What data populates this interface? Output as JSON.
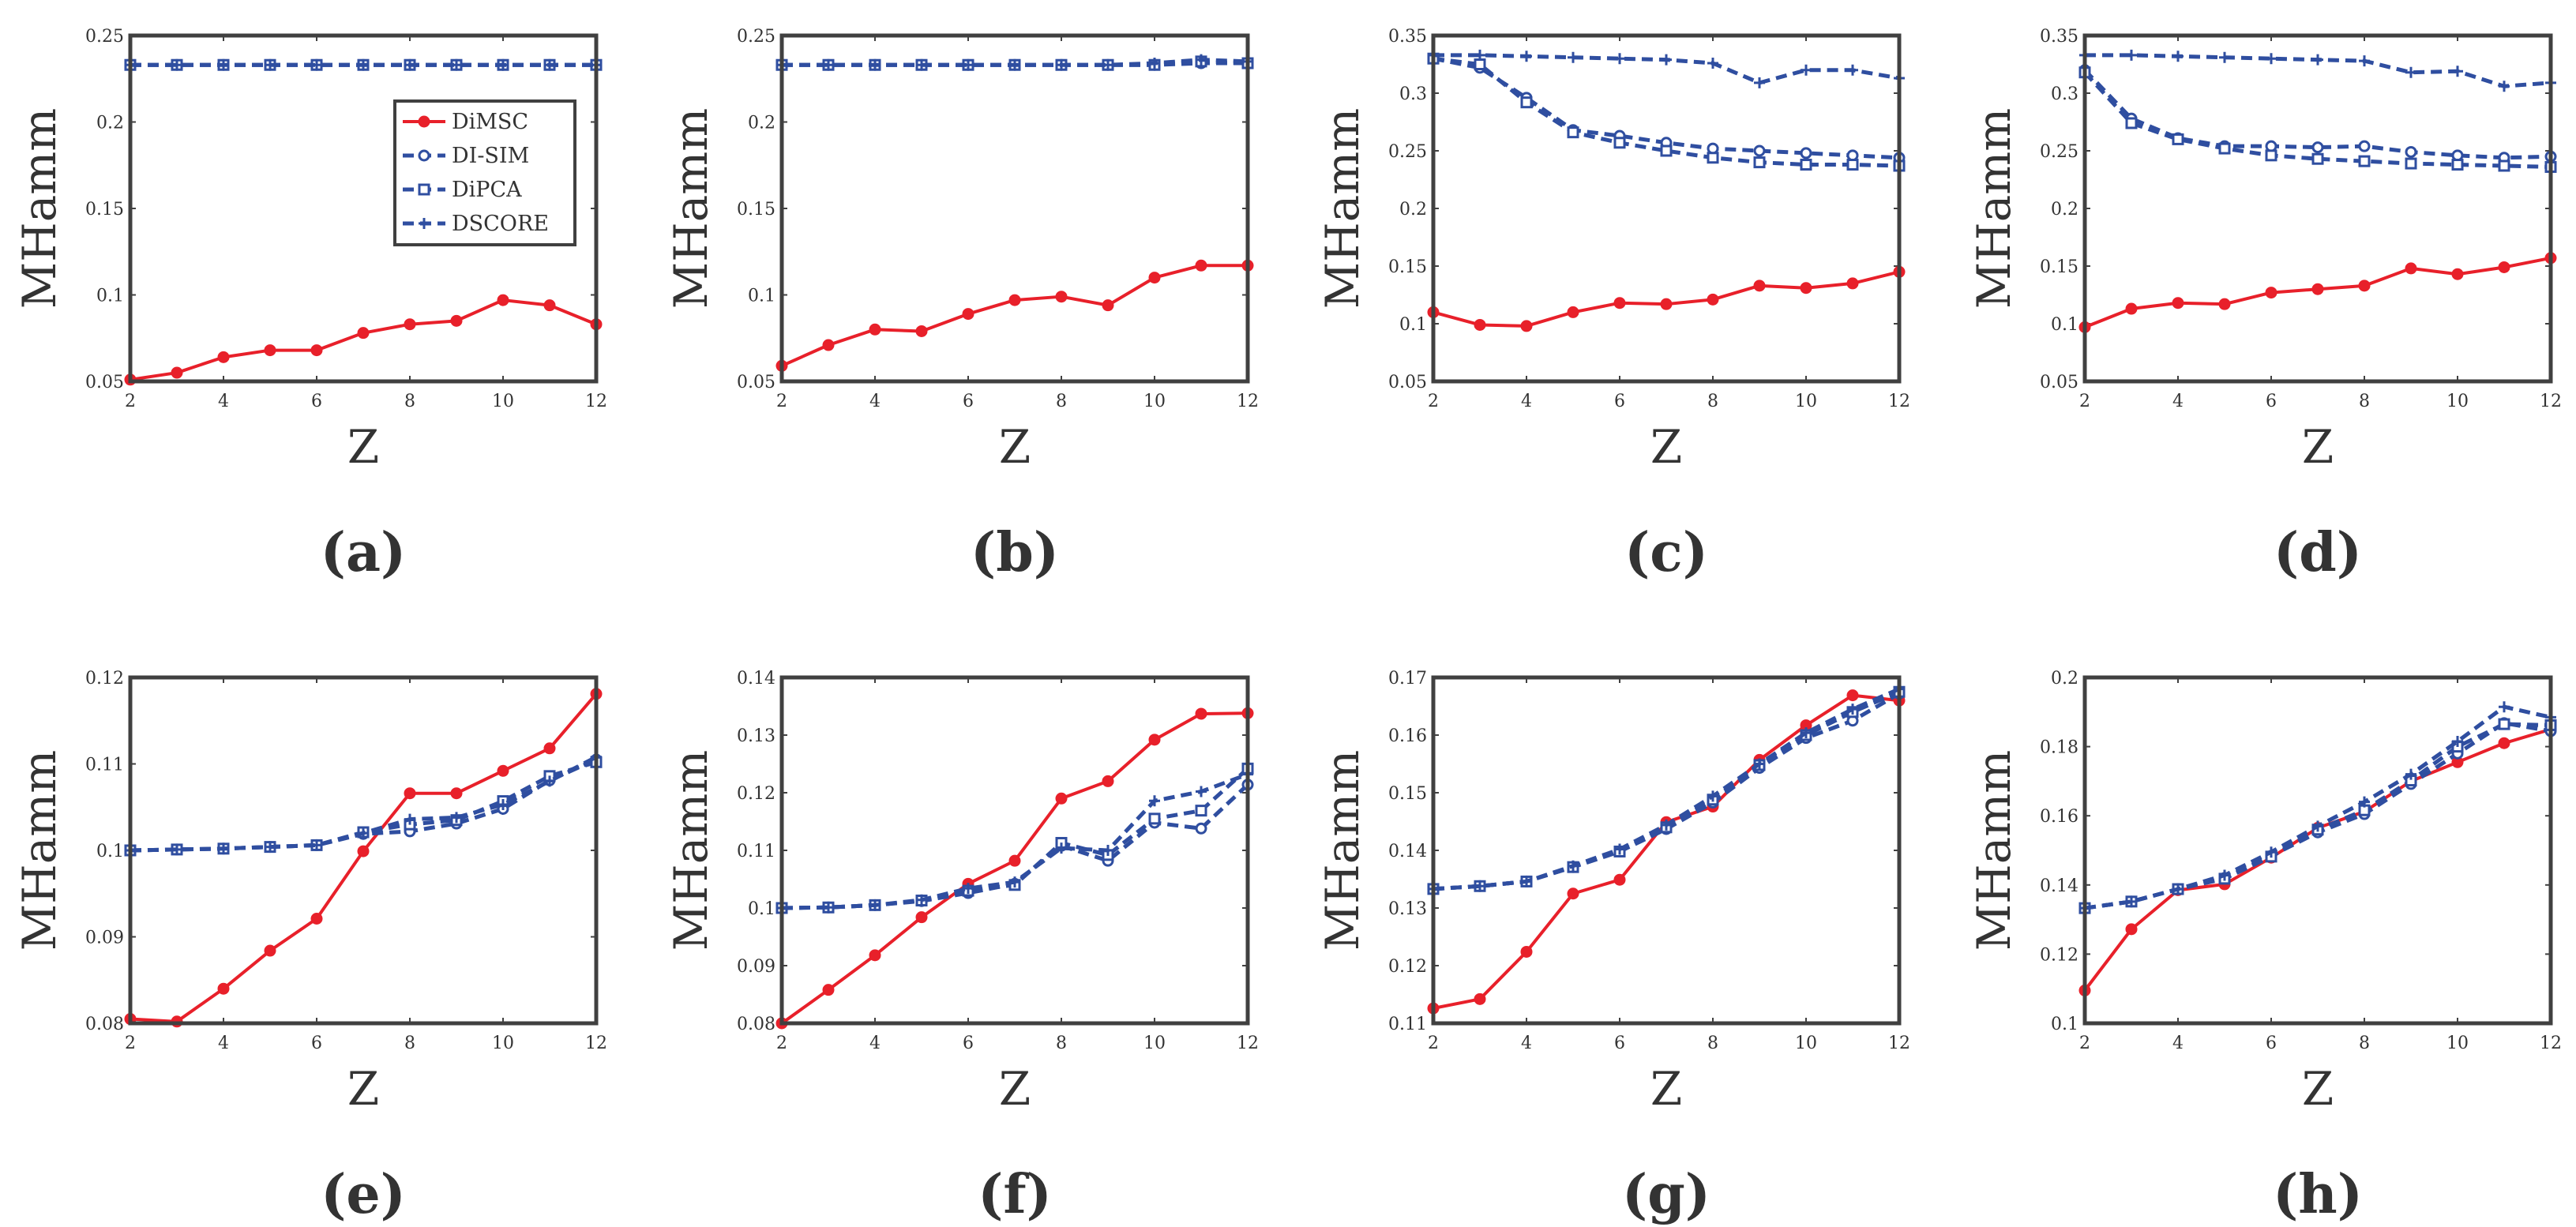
{
  "colors": {
    "dimsc": "#e8202a",
    "blue": "#2f4ea0",
    "axis": "#404040"
  },
  "legend": {
    "items": [
      {
        "label": "DiMSC",
        "marker": "dot",
        "dash": "solid",
        "color": "#e8202a"
      },
      {
        "label": "DI-SIM",
        "marker": "circle",
        "dash": "dashed",
        "color": "#2f4ea0"
      },
      {
        "label": "DiPCA",
        "marker": "square",
        "dash": "dashed",
        "color": "#2f4ea0"
      },
      {
        "label": "DSCORE",
        "marker": "plus",
        "dash": "dashed",
        "color": "#2f4ea0"
      }
    ]
  },
  "chart_data": [
    {
      "type": "line",
      "panel_label": "(a)",
      "xlabel": "Z",
      "ylabel": "MHamm",
      "x": [
        2,
        3,
        4,
        5,
        6,
        7,
        8,
        9,
        10,
        11,
        12
      ],
      "xlim": [
        2,
        12
      ],
      "ylim": [
        0.05,
        0.25
      ],
      "xticks": [
        2,
        4,
        6,
        8,
        10,
        12
      ],
      "yticks": [
        0.05,
        0.1,
        0.15,
        0.2,
        0.25
      ],
      "ytick_labels": [
        "0.05",
        "0.1",
        "0.15",
        "0.2",
        "0.25"
      ],
      "legend": "top-right",
      "series": [
        {
          "name": "DiMSC",
          "values": [
            0.051,
            0.055,
            0.064,
            0.068,
            0.068,
            0.078,
            0.083,
            0.085,
            0.097,
            0.094,
            0.083
          ]
        },
        {
          "name": "DI-SIM",
          "values": [
            0.233,
            0.233,
            0.233,
            0.233,
            0.233,
            0.233,
            0.233,
            0.233,
            0.233,
            0.233,
            0.233
          ]
        },
        {
          "name": "DiPCA",
          "values": [
            0.233,
            0.233,
            0.233,
            0.233,
            0.233,
            0.233,
            0.233,
            0.233,
            0.233,
            0.233,
            0.233
          ]
        },
        {
          "name": "DSCORE",
          "values": [
            0.233,
            0.233,
            0.233,
            0.233,
            0.233,
            0.233,
            0.233,
            0.233,
            0.233,
            0.233,
            0.233
          ]
        }
      ]
    },
    {
      "type": "line",
      "panel_label": "(b)",
      "xlabel": "Z",
      "ylabel": "MHamm",
      "x": [
        2,
        3,
        4,
        5,
        6,
        7,
        8,
        9,
        10,
        11,
        12
      ],
      "xlim": [
        2,
        12
      ],
      "ylim": [
        0.05,
        0.25
      ],
      "xticks": [
        2,
        4,
        6,
        8,
        10,
        12
      ],
      "yticks": [
        0.05,
        0.1,
        0.15,
        0.2,
        0.25
      ],
      "ytick_labels": [
        "0.05",
        "0.1",
        "0.15",
        "0.2",
        "0.25"
      ],
      "series": [
        {
          "name": "DiMSC",
          "values": [
            0.059,
            0.071,
            0.08,
            0.079,
            0.089,
            0.097,
            0.099,
            0.094,
            0.11,
            0.117,
            0.117
          ]
        },
        {
          "name": "DI-SIM",
          "values": [
            0.233,
            0.233,
            0.233,
            0.233,
            0.233,
            0.233,
            0.233,
            0.233,
            0.233,
            0.234,
            0.234
          ]
        },
        {
          "name": "DiPCA",
          "values": [
            0.233,
            0.233,
            0.233,
            0.233,
            0.233,
            0.233,
            0.233,
            0.233,
            0.233,
            0.235,
            0.234
          ]
        },
        {
          "name": "DSCORE",
          "values": [
            0.233,
            0.233,
            0.233,
            0.233,
            0.233,
            0.233,
            0.233,
            0.233,
            0.234,
            0.236,
            0.235
          ]
        }
      ]
    },
    {
      "type": "line",
      "panel_label": "(c)",
      "xlabel": "Z",
      "ylabel": "MHamm",
      "x": [
        2,
        3,
        4,
        5,
        6,
        7,
        8,
        9,
        10,
        11,
        12
      ],
      "xlim": [
        2,
        12
      ],
      "ylim": [
        0.05,
        0.35
      ],
      "xticks": [
        2,
        4,
        6,
        8,
        10,
        12
      ],
      "yticks": [
        0.05,
        0.1,
        0.15,
        0.2,
        0.25,
        0.3,
        0.35
      ],
      "ytick_labels": [
        "0.05",
        "0.1",
        "0.15",
        "0.2",
        "0.25",
        "0.3",
        "0.35"
      ],
      "series": [
        {
          "name": "DiMSC",
          "values": [
            0.11,
            0.099,
            0.098,
            0.11,
            0.118,
            0.117,
            0.121,
            0.133,
            0.131,
            0.135,
            0.145
          ]
        },
        {
          "name": "DI-SIM",
          "values": [
            0.33,
            0.322,
            0.296,
            0.268,
            0.263,
            0.257,
            0.252,
            0.25,
            0.248,
            0.246,
            0.244
          ]
        },
        {
          "name": "DiPCA",
          "values": [
            0.33,
            0.325,
            0.292,
            0.266,
            0.257,
            0.25,
            0.244,
            0.24,
            0.238,
            0.238,
            0.237
          ]
        },
        {
          "name": "DSCORE",
          "values": [
            0.333,
            0.333,
            0.332,
            0.331,
            0.33,
            0.329,
            0.326,
            0.309,
            0.32,
            0.32,
            0.313
          ]
        }
      ]
    },
    {
      "type": "line",
      "panel_label": "(d)",
      "xlabel": "Z",
      "ylabel": "MHamm",
      "x": [
        2,
        3,
        4,
        5,
        6,
        7,
        8,
        9,
        10,
        11,
        12
      ],
      "xlim": [
        2,
        12
      ],
      "ylim": [
        0.05,
        0.35
      ],
      "xticks": [
        2,
        4,
        6,
        8,
        10,
        12
      ],
      "yticks": [
        0.05,
        0.1,
        0.15,
        0.2,
        0.25,
        0.3,
        0.35
      ],
      "ytick_labels": [
        "0.05",
        "0.1",
        "0.15",
        "0.2",
        "0.25",
        "0.3",
        "0.35"
      ],
      "series": [
        {
          "name": "DiMSC",
          "values": [
            0.097,
            0.113,
            0.118,
            0.117,
            0.127,
            0.13,
            0.133,
            0.148,
            0.143,
            0.149,
            0.157
          ]
        },
        {
          "name": "DI-SIM",
          "values": [
            0.32,
            0.278,
            0.261,
            0.254,
            0.254,
            0.253,
            0.254,
            0.249,
            0.246,
            0.244,
            0.245
          ]
        },
        {
          "name": "DiPCA",
          "values": [
            0.318,
            0.274,
            0.26,
            0.252,
            0.246,
            0.243,
            0.241,
            0.239,
            0.238,
            0.237,
            0.236
          ]
        },
        {
          "name": "DSCORE",
          "values": [
            0.333,
            0.333,
            0.332,
            0.331,
            0.33,
            0.329,
            0.328,
            0.318,
            0.319,
            0.306,
            0.309
          ]
        }
      ]
    },
    {
      "type": "line",
      "panel_label": "(e)",
      "xlabel": "Z",
      "ylabel": "MHamm",
      "x": [
        2,
        3,
        4,
        5,
        6,
        7,
        8,
        9,
        10,
        11,
        12
      ],
      "xlim": [
        2,
        12
      ],
      "ylim": [
        0.08,
        0.12
      ],
      "xticks": [
        2,
        4,
        6,
        8,
        10,
        12
      ],
      "yticks": [
        0.08,
        0.09,
        0.1,
        0.11,
        0.12
      ],
      "ytick_labels": [
        "0.08",
        "0.09",
        "0.1",
        "0.11",
        "0.12"
      ],
      "series": [
        {
          "name": "DiMSC",
          "values": [
            0.0805,
            0.0802,
            0.084,
            0.0884,
            0.0921,
            0.0999,
            0.1066,
            0.1066,
            0.1092,
            0.1118,
            0.1181
          ]
        },
        {
          "name": "DI-SIM",
          "values": [
            0.1,
            0.1001,
            0.1002,
            0.1004,
            0.1006,
            0.1019,
            0.1022,
            0.1031,
            0.1048,
            0.1081,
            0.1105
          ]
        },
        {
          "name": "DiPCA",
          "values": [
            0.1,
            0.1001,
            0.1002,
            0.1004,
            0.1006,
            0.1021,
            0.103,
            0.1035,
            0.1057,
            0.1086,
            0.1102
          ]
        },
        {
          "name": "DSCORE",
          "values": [
            0.1,
            0.1001,
            0.1002,
            0.1004,
            0.1006,
            0.102,
            0.1036,
            0.1038,
            0.1053,
            0.108,
            0.1108
          ]
        }
      ]
    },
    {
      "type": "line",
      "panel_label": "(f)",
      "xlabel": "Z",
      "ylabel": "MHamm",
      "x": [
        2,
        3,
        4,
        5,
        6,
        7,
        8,
        9,
        10,
        11,
        12
      ],
      "xlim": [
        2,
        12
      ],
      "ylim": [
        0.08,
        0.14
      ],
      "xticks": [
        2,
        4,
        6,
        8,
        10,
        12
      ],
      "yticks": [
        0.08,
        0.09,
        0.1,
        0.11,
        0.12,
        0.13,
        0.14
      ],
      "ytick_labels": [
        "0.08",
        "0.09",
        "0.1",
        "0.11",
        "0.12",
        "0.13",
        "0.14"
      ],
      "series": [
        {
          "name": "DiMSC",
          "values": [
            0.08,
            0.0858,
            0.0918,
            0.0984,
            0.1042,
            0.1082,
            0.119,
            0.122,
            0.1292,
            0.1337,
            0.1338
          ]
        },
        {
          "name": "DI-SIM",
          "values": [
            0.1,
            0.1001,
            0.1005,
            0.1012,
            0.1026,
            0.1042,
            0.1108,
            0.1082,
            0.1148,
            0.1138,
            0.1214
          ]
        },
        {
          "name": "DiPCA",
          "values": [
            0.1,
            0.1001,
            0.1005,
            0.1013,
            0.103,
            0.104,
            0.1113,
            0.1092,
            0.1155,
            0.1169,
            0.1242
          ]
        },
        {
          "name": "DSCORE",
          "values": [
            0.1,
            0.1001,
            0.1005,
            0.1014,
            0.1034,
            0.1045,
            0.1104,
            0.11,
            0.1186,
            0.1202,
            0.1232
          ]
        }
      ]
    },
    {
      "type": "line",
      "panel_label": "(g)",
      "xlabel": "Z",
      "ylabel": "MHamm",
      "x": [
        2,
        3,
        4,
        5,
        6,
        7,
        8,
        9,
        10,
        11,
        12
      ],
      "xlim": [
        2,
        12
      ],
      "ylim": [
        0.11,
        0.17
      ],
      "xticks": [
        2,
        4,
        6,
        8,
        10,
        12
      ],
      "yticks": [
        0.11,
        0.12,
        0.13,
        0.14,
        0.15,
        0.16,
        0.17
      ],
      "ytick_labels": [
        "0.11",
        "0.12",
        "0.13",
        "0.14",
        "0.15",
        "0.16",
        "0.17"
      ],
      "series": [
        {
          "name": "DiMSC",
          "values": [
            0.1126,
            0.1142,
            0.1224,
            0.1325,
            0.1349,
            0.1449,
            0.1476,
            0.1557,
            0.1617,
            0.1669,
            0.166
          ]
        },
        {
          "name": "DI-SIM",
          "values": [
            0.1333,
            0.1338,
            0.1346,
            0.1371,
            0.1398,
            0.1437,
            0.1483,
            0.1543,
            0.1595,
            0.1625,
            0.1672
          ]
        },
        {
          "name": "DiPCA",
          "values": [
            0.1333,
            0.1338,
            0.1346,
            0.1371,
            0.1398,
            0.144,
            0.1488,
            0.1548,
            0.16,
            0.164,
            0.1675
          ]
        },
        {
          "name": "DSCORE",
          "values": [
            0.1333,
            0.1338,
            0.1346,
            0.1373,
            0.1402,
            0.1444,
            0.1494,
            0.155,
            0.1604,
            0.1645,
            0.168
          ]
        }
      ]
    },
    {
      "type": "line",
      "panel_label": "(h)",
      "xlabel": "Z",
      "ylabel": "MHamm",
      "x": [
        2,
        3,
        4,
        5,
        6,
        7,
        8,
        9,
        10,
        11,
        12
      ],
      "xlim": [
        2,
        12
      ],
      "ylim": [
        0.1,
        0.2
      ],
      "xticks": [
        2,
        4,
        6,
        8,
        10,
        12
      ],
      "yticks": [
        0.1,
        0.12,
        0.14,
        0.16,
        0.18,
        0.2
      ],
      "ytick_labels": [
        "0.1",
        "0.12",
        "0.14",
        "0.16",
        "0.18",
        "0.2"
      ],
      "series": [
        {
          "name": "DiMSC",
          "values": [
            0.1095,
            0.1272,
            0.1385,
            0.1402,
            0.1479,
            0.1565,
            0.1612,
            0.17,
            0.1755,
            0.181,
            0.185
          ]
        },
        {
          "name": "DI-SIM",
          "values": [
            0.1333,
            0.1352,
            0.1388,
            0.142,
            0.1484,
            0.1552,
            0.1605,
            0.1692,
            0.178,
            0.1868,
            0.1845
          ]
        },
        {
          "name": "DiPCA",
          "values": [
            0.1333,
            0.1352,
            0.1388,
            0.1418,
            0.1482,
            0.156,
            0.1616,
            0.1702,
            0.18,
            0.1865,
            0.1862
          ]
        },
        {
          "name": "DSCORE",
          "values": [
            0.1333,
            0.1352,
            0.1388,
            0.1428,
            0.1495,
            0.157,
            0.164,
            0.172,
            0.1815,
            0.1915,
            0.1885
          ]
        }
      ]
    }
  ]
}
